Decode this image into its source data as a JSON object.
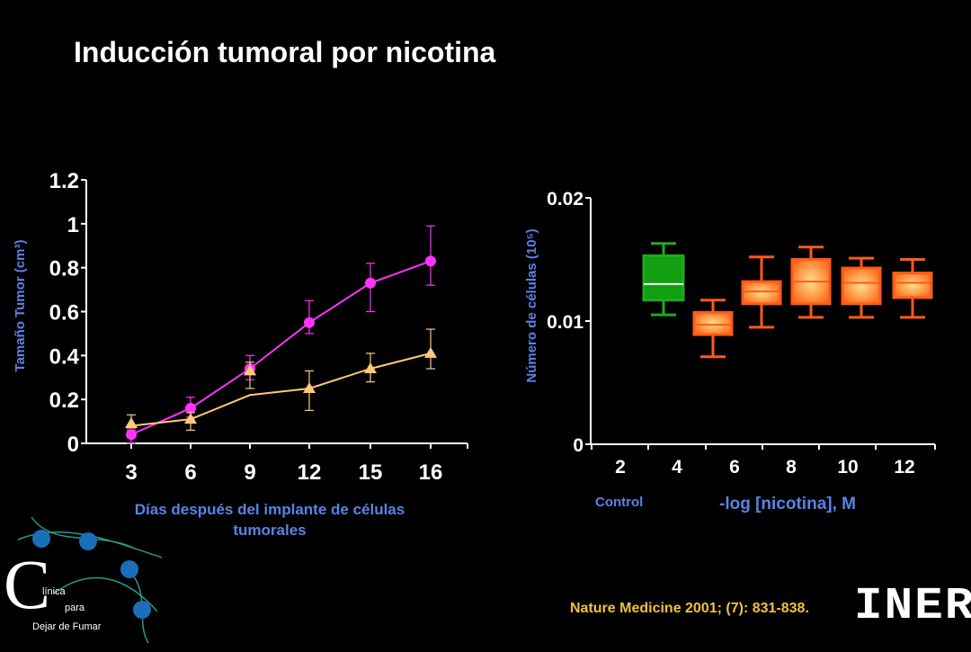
{
  "title": "Inducción tumoral por nicotina",
  "chart_data": [
    {
      "type": "line",
      "ylabel": "Tamaño Tumor (cm³)",
      "xlabel": "Días después del implante de células tumorales",
      "categories": [
        "3",
        "6",
        "9",
        "12",
        "15",
        "16"
      ],
      "ylim": [
        0,
        1.2
      ],
      "yticks": [
        "0",
        "0.2",
        "0.4",
        "0.6",
        "0.8",
        "1",
        "1.2"
      ],
      "series": [
        {
          "marker": "circle",
          "color": "#ff33ff",
          "values": [
            0.04,
            0.16,
            0.34,
            0.55,
            0.73,
            0.83
          ],
          "err_high": [
            0.06,
            0.21,
            0.4,
            0.65,
            0.82,
            0.99
          ],
          "err_low": [
            0.0,
            0.12,
            0.29,
            0.5,
            0.6,
            0.72
          ]
        },
        {
          "marker": "triangle",
          "color": "#ffc87a",
          "values": [
            0.09,
            0.11,
            0.33,
            0.25,
            0.34,
            0.41
          ],
          "line_values": [
            0.08,
            0.11,
            0.22,
            0.25,
            0.34,
            0.41
          ],
          "err_high": [
            0.13,
            0.14,
            0.37,
            0.33,
            0.41,
            0.52
          ],
          "err_low": [
            0.07,
            0.06,
            0.25,
            0.15,
            0.28,
            0.34
          ]
        }
      ]
    },
    {
      "type": "box",
      "ylabel": "Número de células (10⁵)",
      "xlabel": "-log [nicotina], M",
      "categories": [
        "2",
        "4",
        "6",
        "8",
        "10",
        "12"
      ],
      "extra_label": "Control",
      "ylim": [
        0,
        0.02
      ],
      "yticks": [
        "0",
        "0.01",
        "0.02"
      ],
      "boxes": [
        {
          "min": 0.0105,
          "q1": 0.0117,
          "median": 0.013,
          "q3": 0.0153,
          "max": 0.0163,
          "color": "#22aa22"
        },
        {
          "min": 0.0071,
          "q1": 0.0089,
          "median": 0.0097,
          "q3": 0.0107,
          "max": 0.0117,
          "color": "#ff5a1a"
        },
        {
          "min": 0.0095,
          "q1": 0.0114,
          "median": 0.0124,
          "q3": 0.0132,
          "max": 0.0152,
          "color": "#ff5a1a"
        },
        {
          "min": 0.0103,
          "q1": 0.0114,
          "median": 0.0132,
          "q3": 0.015,
          "max": 0.016,
          "color": "#ff5a1a"
        },
        {
          "min": 0.0103,
          "q1": 0.0114,
          "median": 0.0131,
          "q3": 0.0143,
          "max": 0.0151,
          "color": "#ff5a1a"
        },
        {
          "min": 0.0103,
          "q1": 0.0119,
          "median": 0.0131,
          "q3": 0.0139,
          "max": 0.015,
          "color": "#ff5a1a"
        }
      ]
    }
  ],
  "citation": "Nature Medicine 2001; (7): 831-838.",
  "logo": {
    "letter": "C",
    "line1": "línica",
    "line2": "para",
    "line3": "Dejar de Fumar"
  },
  "iner_logo": "INER",
  "colors": {
    "axis_label": "#5b82e6",
    "citation": "#f0c040"
  }
}
